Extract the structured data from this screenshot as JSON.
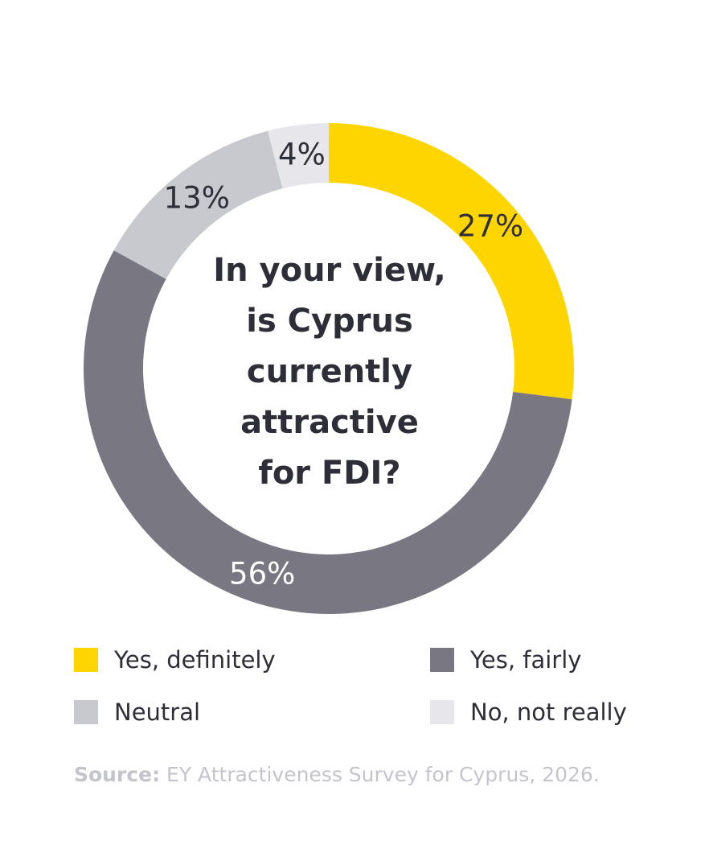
{
  "chart_data": {
    "type": "pie",
    "variant": "donut",
    "title": "In your view, is Cyprus currently attractive for FDI?",
    "title_lines": [
      "In your view,",
      "is Cyprus",
      "currently",
      "attractive",
      "for FDI?"
    ],
    "unit": "%",
    "slices": [
      {
        "label": "Yes, definitely",
        "value": 27,
        "value_label": "27%",
        "color": "#ffd500",
        "label_color": "#2e2e38"
      },
      {
        "label": "Yes, fairly",
        "value": 56,
        "value_label": "56%",
        "color": "#797882",
        "label_color": "#ffffff"
      },
      {
        "label": "Neutral",
        "value": 13,
        "value_label": "13%",
        "color": "#c8c8cf",
        "label_color": "#2e2e38"
      },
      {
        "label": "No, not really",
        "value": 4,
        "value_label": "4%",
        "color": "#e6e6eb",
        "label_color": "#2e2e38"
      }
    ],
    "legend_placement": "bottom"
  },
  "legend": [
    {
      "label": "Yes, definitely",
      "color": "#ffd500"
    },
    {
      "label": "Yes, fairly",
      "color": "#797882"
    },
    {
      "label": "Neutral",
      "color": "#c8c8cf"
    },
    {
      "label": "No, not really",
      "color": "#e6e6eb"
    }
  ],
  "source": {
    "label": "Source:",
    "text": " EY Attractiveness Survey for Cyprus, 2026."
  }
}
